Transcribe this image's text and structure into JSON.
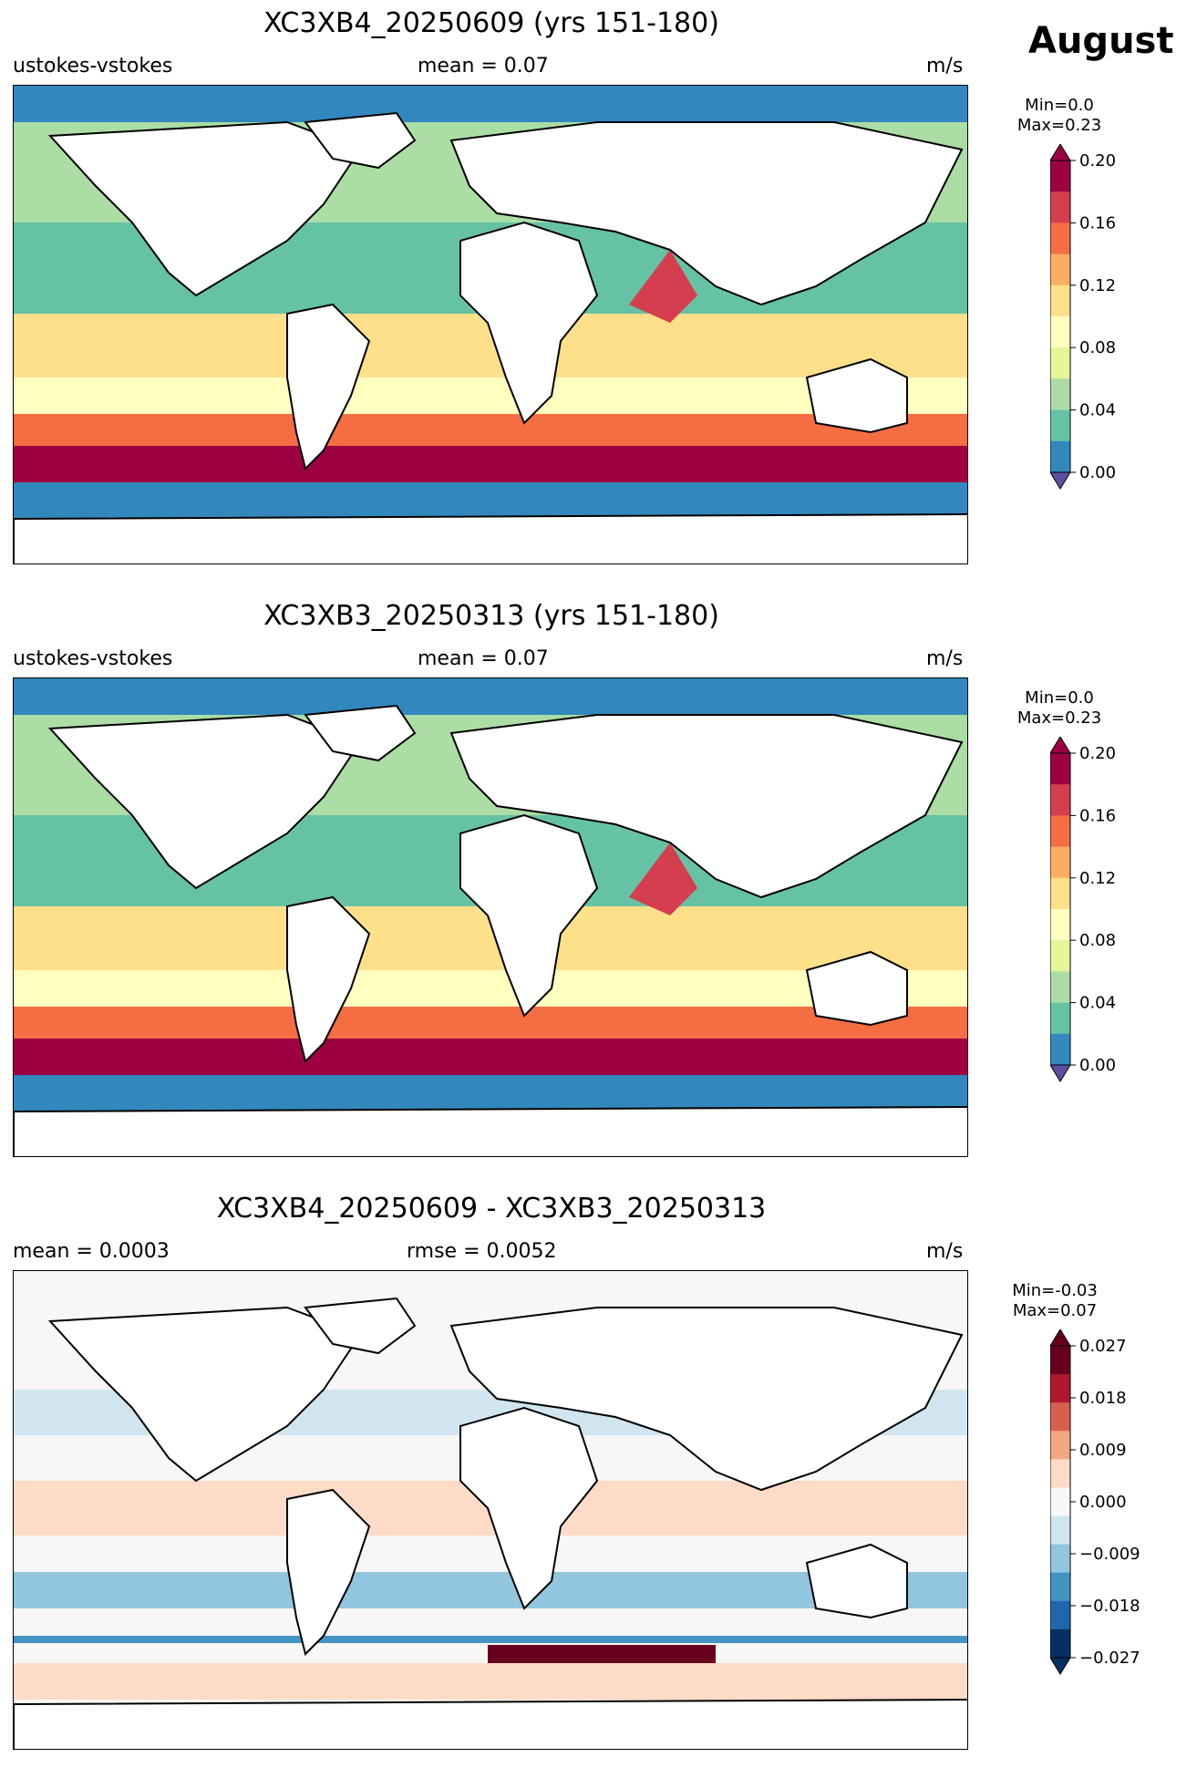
{
  "header": {
    "month": "August"
  },
  "panels": [
    {
      "title": "XC3XB4_20250609 (yrs 151-180)",
      "left_label": "ustokes-vstokes",
      "center_label": "mean = 0.07",
      "right_label": "m/s",
      "minmax": {
        "min": "Min=0.0",
        "max": "Max=0.23"
      },
      "colorbar": {
        "ticks": [
          "0.20",
          "0.16",
          "0.12",
          "0.08",
          "0.04",
          "0.00"
        ],
        "colors": [
          "#9e0142",
          "#d53e4f",
          "#f46d43",
          "#fdae61",
          "#fee08b",
          "#ffffbf",
          "#e6f598",
          "#abdda4",
          "#66c2a5",
          "#3288bd"
        ],
        "under": "#5e4fa2",
        "over": "#9e0142"
      }
    },
    {
      "title": "XC3XB3_20250313 (yrs 151-180)",
      "left_label": "ustokes-vstokes",
      "center_label": "mean = 0.07",
      "right_label": "m/s",
      "minmax": {
        "min": "Min=0.0",
        "max": "Max=0.23"
      },
      "colorbar": {
        "ticks": [
          "0.20",
          "0.16",
          "0.12",
          "0.08",
          "0.04",
          "0.00"
        ],
        "colors": [
          "#9e0142",
          "#d53e4f",
          "#f46d43",
          "#fdae61",
          "#fee08b",
          "#ffffbf",
          "#e6f598",
          "#abdda4",
          "#66c2a5",
          "#3288bd"
        ],
        "under": "#5e4fa2",
        "over": "#9e0142"
      }
    },
    {
      "title": "XC3XB4_20250609 - XC3XB3_20250313",
      "left_label": "mean = 0.0003",
      "center_label": "rmse = 0.0052",
      "right_label": "m/s",
      "minmax": {
        "min": "Min=-0.03",
        "max": "Max=0.07"
      },
      "colorbar": {
        "ticks": [
          "0.027",
          "0.018",
          "0.009",
          "0.000",
          "−0.009",
          "−0.018",
          "−0.027"
        ],
        "colors": [
          "#67001f",
          "#b2182b",
          "#d6604d",
          "#f4a582",
          "#fddbc7",
          "#f7f7f7",
          "#d1e5f0",
          "#92c5de",
          "#4393c3",
          "#2166ac",
          "#053061"
        ],
        "under": "#053061",
        "over": "#67001f"
      }
    }
  ]
}
